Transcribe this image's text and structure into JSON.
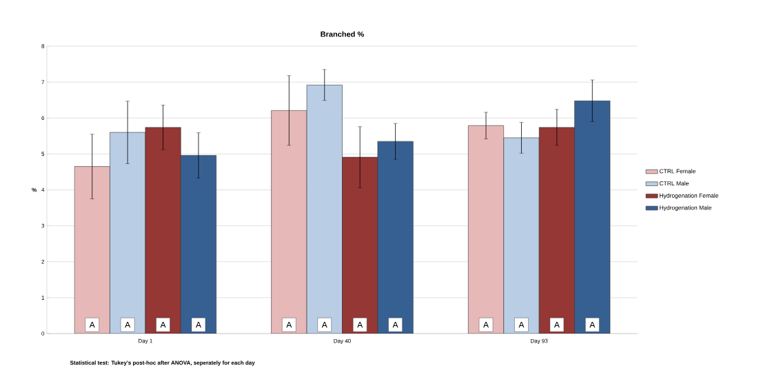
{
  "chart_data": {
    "type": "bar",
    "title": "Branched %",
    "ylabel": "%",
    "categories": [
      "Day 1",
      "Day 40",
      "Day 93"
    ],
    "series": [
      {
        "name": "CTRL Female",
        "color": "#e6b9b8",
        "values": [
          4.65,
          6.21,
          5.79
        ],
        "errors": [
          0.9,
          0.97,
          0.37
        ],
        "value_labels": [
          "A",
          "A",
          "A"
        ]
      },
      {
        "name": "CTRL Male",
        "color": "#b9cde5",
        "values": [
          5.6,
          6.92,
          5.45
        ],
        "errors": [
          0.87,
          0.43,
          0.43
        ],
        "value_labels": [
          "A",
          "A",
          "A"
        ]
      },
      {
        "name": "Hydrogenation Female",
        "color": "#953735",
        "values": [
          5.74,
          4.91,
          5.74
        ],
        "errors": [
          0.62,
          0.85,
          0.5
        ],
        "value_labels": [
          "A",
          "A",
          "A"
        ]
      },
      {
        "name": "Hydrogenation Male",
        "color": "#376092",
        "values": [
          4.96,
          5.35,
          6.48
        ],
        "errors": [
          0.63,
          0.5,
          0.58
        ],
        "value_labels": [
          "A",
          "A",
          "A"
        ]
      }
    ],
    "ylim": [
      0,
      8
    ],
    "yticks": [
      0,
      1,
      2,
      3,
      4,
      5,
      6,
      7,
      8
    ],
    "grid": "y",
    "legend": "right",
    "annotations": [
      "Statistical test: Tukey's post-hoc after ANOVA, seperately for each day"
    ]
  }
}
